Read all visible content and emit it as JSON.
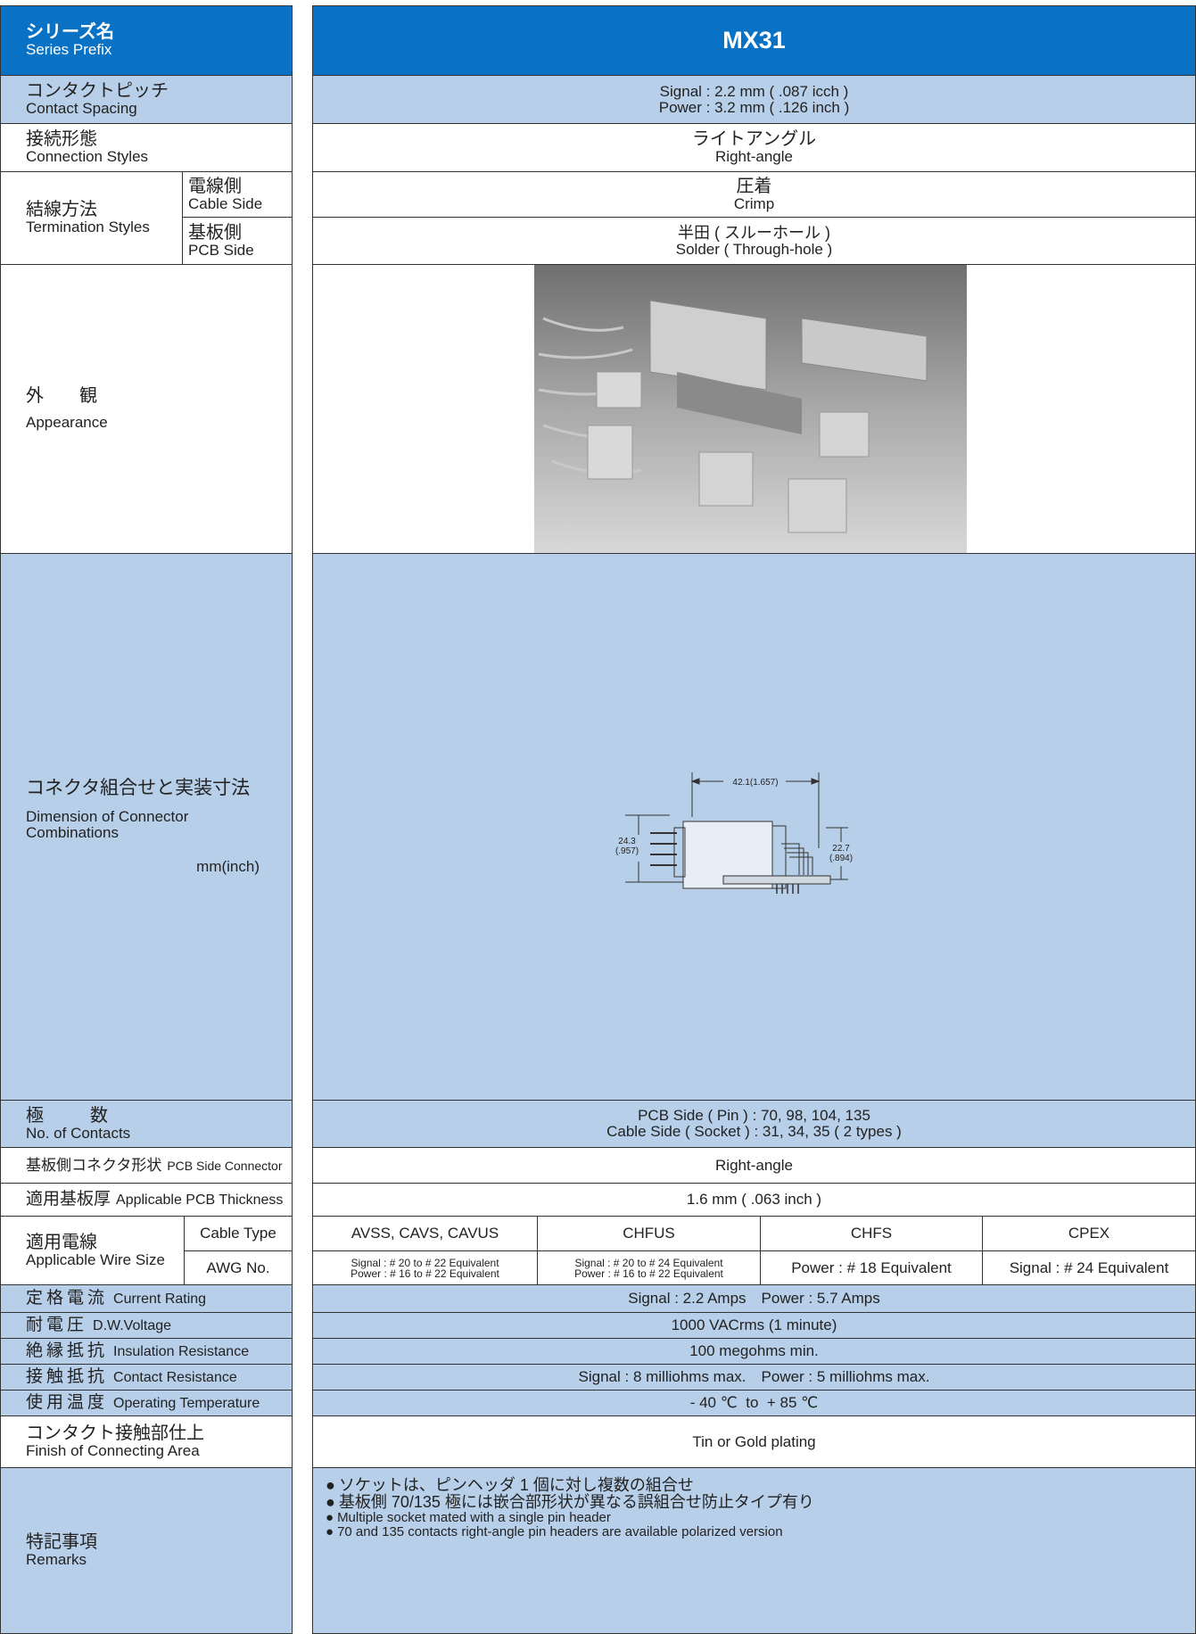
{
  "header": {
    "ja": "シリーズ名",
    "en": "Series Prefix",
    "value": "MX31"
  },
  "contact_spacing": {
    "ja": "コンタクトピッチ",
    "en": "Contact Spacing",
    "values": [
      "Signal : 2.2 mm ( .087 icch )",
      "Power : 3.2 mm ( .126 inch )"
    ]
  },
  "connection_styles": {
    "ja": "接続形態",
    "en": "Connection Styles",
    "value_ja": "ライトアングル",
    "value_en": "Right-angle"
  },
  "termination_styles": {
    "ja": "結線方法",
    "en": "Termination Styles",
    "cable_side": {
      "ja": "電線側",
      "en": "Cable Side",
      "value_ja": "圧着",
      "value_en": "Crimp"
    },
    "pcb_side": {
      "ja": "基板側",
      "en": "PCB Side",
      "value_ja": "半田 ( スルーホール )",
      "value_en": "Solder ( Through-hole )"
    }
  },
  "appearance": {
    "ja": "外　　観",
    "en": "Appearance"
  },
  "dimension": {
    "ja": "コネクタ組合せと実装寸法",
    "en": "Dimension of Connector Combinations",
    "unit": "mm(inch)",
    "width_label": "42.1(1.657)",
    "height_left": [
      "24.3",
      "(.957)"
    ],
    "height_right": [
      "22.7",
      "(.894)"
    ]
  },
  "contacts": {
    "ja": "極　　数",
    "en": "No. of Contacts",
    "values": [
      "PCB Side ( Pin ) : 70, 98, 104, 135",
      "Cable Side ( Socket ) : 31, 34, 35 ( 2 types )"
    ]
  },
  "pcb_connector_styles": {
    "ja": "基板側コネクタ形状",
    "en": "PCB Side Connector Styles",
    "value": "Right-angle"
  },
  "pcb_thickness": {
    "ja": "適用基板厚",
    "en": "Applicable PCB Thickness",
    "value": "1.6 mm ( .063 inch )"
  },
  "wire_size": {
    "ja": "適用電線",
    "en": "Applicable Wire Size",
    "cable_type_label": "Cable Type",
    "awg_label": "AWG No.",
    "columns": [
      {
        "cable_type": "AVSS, CAVS, CAVUS",
        "awg": [
          "Signal : # 20 to # 22 Equivalent",
          "Power : # 16 to # 22 Equivalent"
        ]
      },
      {
        "cable_type": "CHFUS",
        "awg": [
          "Signal : # 20 to # 24 Equivalent",
          "Power : # 16 to # 22 Equivalent"
        ]
      },
      {
        "cable_type": "CHFS",
        "awg": [
          "Power : # 18 Equivalent"
        ]
      },
      {
        "cable_type": "CPEX",
        "awg": [
          "Signal : # 24 Equivalent"
        ]
      }
    ]
  },
  "current_rating": {
    "ja": "定格電流",
    "en": "Current Rating",
    "value": "Signal : 2.2 Amps　Power : 5.7 Amps"
  },
  "voltage": {
    "ja": "耐電圧",
    "en": "D.W.Voltage",
    "value": "1000 VACrms (1 minute)"
  },
  "insulation": {
    "ja": "絶縁抵抗",
    "en": "Insulation Resistance",
    "value": "100 megohms min."
  },
  "contact_resistance": {
    "ja": "接触抵抗",
    "en": "Contact Resistance",
    "value": "Signal : 8 milliohms max.　Power : 5 milliohms max."
  },
  "temperature": {
    "ja": "使用温度",
    "en": "Operating Temperature",
    "value": "- 40 ℃  to  + 85 ℃"
  },
  "finish": {
    "ja": "コンタクト接触部仕上",
    "en": "Finish of Connecting Area",
    "value": "Tin or Gold plating"
  },
  "remarks": {
    "ja": "特記事項",
    "en": "Remarks",
    "items": [
      "ソケットは、ピンヘッダ 1 個に対し複数の組合せ",
      "基板側 70/135 極には嵌合部形状が異なる誤組合せ防止タイプ有り",
      "Multiple socket mated with a single pin header",
      "70 and 135 contacts right-angle pin headers are available polarized version"
    ]
  }
}
